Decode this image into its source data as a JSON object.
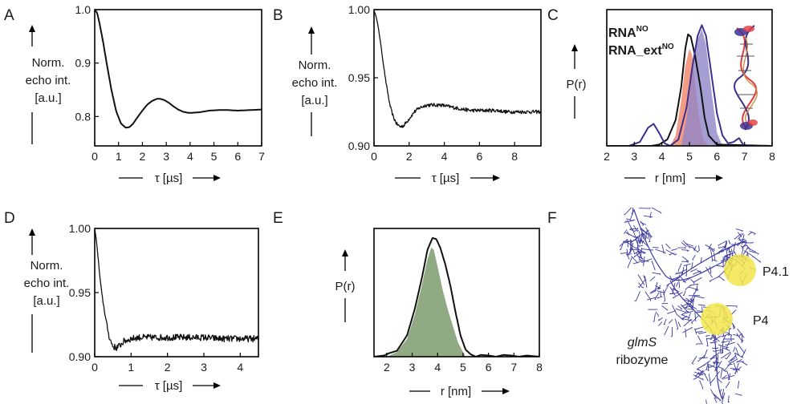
{
  "chart_data": [
    {
      "panel": "A",
      "type": "line",
      "xlabel": "τ [µs]",
      "ylabel": [
        "Norm.",
        "echo int.",
        "[a.u.]"
      ],
      "xlim": [
        0,
        7
      ],
      "ylim": [
        0.745,
        1.0
      ],
      "xticks": [
        0,
        1,
        2,
        3,
        4,
        5,
        6,
        7
      ],
      "yticks": [
        {
          "v": 0.8,
          "label": "0.8"
        },
        {
          "v": 0.9,
          "label": "0.9"
        },
        {
          "v": 1.0,
          "label": "1.0"
        }
      ],
      "series": [
        {
          "noise": 0,
          "x": [
            0,
            0.1,
            0.2,
            0.35,
            0.5,
            0.7,
            0.9,
            1.1,
            1.3,
            1.45,
            1.6,
            1.8,
            2.0,
            2.2,
            2.4,
            2.6,
            2.75,
            2.9,
            3.1,
            3.3,
            3.5,
            3.7,
            3.9,
            4.1,
            4.4,
            4.8,
            5.2,
            5.6,
            6.0,
            6.5,
            7.0
          ],
          "y": [
            1.0,
            0.994,
            0.975,
            0.94,
            0.9,
            0.85,
            0.81,
            0.787,
            0.779,
            0.78,
            0.786,
            0.799,
            0.811,
            0.822,
            0.829,
            0.833,
            0.833,
            0.831,
            0.826,
            0.819,
            0.813,
            0.809,
            0.807,
            0.807,
            0.808,
            0.811,
            0.812,
            0.812,
            0.811,
            0.812,
            0.813
          ]
        }
      ]
    },
    {
      "panel": "B",
      "type": "line",
      "xlabel": "τ [µs]",
      "ylabel": [
        "Norm.",
        "echo int.",
        "[a.u.]"
      ],
      "xlim": [
        0,
        9.5
      ],
      "ylim": [
        0.9,
        1.0
      ],
      "xticks": [
        0,
        2,
        4,
        6,
        8
      ],
      "yticks": [
        {
          "v": 0.9,
          "label": "0.90"
        },
        {
          "v": 0.95,
          "label": "0.95"
        },
        {
          "v": 1.0,
          "label": "1.00"
        }
      ],
      "series": [
        {
          "noise": 0.0013,
          "x": [
            0,
            0.1,
            0.2,
            0.35,
            0.5,
            0.7,
            0.9,
            1.1,
            1.3,
            1.5,
            1.7,
            2.0,
            2.3,
            2.6,
            3.0,
            3.4,
            3.8,
            4.2,
            4.6,
            5.0,
            5.5,
            6.0,
            6.5,
            7.0,
            7.5,
            8.0,
            8.5,
            9.0,
            9.5
          ],
          "y": [
            0.999,
            0.996,
            0.99,
            0.978,
            0.963,
            0.945,
            0.93,
            0.921,
            0.916,
            0.914,
            0.915,
            0.92,
            0.925,
            0.928,
            0.93,
            0.93,
            0.93,
            0.929,
            0.928,
            0.927,
            0.926,
            0.926,
            0.926,
            0.926,
            0.925,
            0.925,
            0.925,
            0.925,
            0.925
          ]
        }
      ]
    },
    {
      "panel": "C",
      "type": "area",
      "xlabel": "r [nm]",
      "ylabel": [
        "P(r)"
      ],
      "xlim": [
        2,
        8
      ],
      "ylim": [
        0,
        1.05
      ],
      "xticks": [
        2,
        3,
        4,
        5,
        6,
        7,
        8
      ],
      "yticks": [],
      "legend": [
        {
          "name": "RNA",
          "sup": "NO",
          "color": "#e0393e"
        },
        {
          "name": "RNA_ext",
          "sup": "NO",
          "color": "#3d2f8f"
        }
      ],
      "fills": [
        {
          "color": "#f08b70",
          "opacity": 0.85,
          "x": [
            4.3,
            4.5,
            4.7,
            4.85,
            5.0,
            5.1,
            5.2,
            5.35,
            5.5,
            5.7
          ],
          "y": [
            0,
            0.08,
            0.35,
            0.62,
            0.75,
            0.7,
            0.5,
            0.22,
            0.05,
            0
          ]
        },
        {
          "color": "#8f86c8",
          "opacity": 0.8,
          "x": [
            4.7,
            4.9,
            5.1,
            5.3,
            5.45,
            5.6,
            5.8,
            6.0,
            6.2
          ],
          "y": [
            0,
            0.22,
            0.55,
            0.82,
            0.9,
            0.78,
            0.42,
            0.1,
            0
          ]
        }
      ],
      "series": [
        {
          "color": "#111111",
          "x": [
            2,
            3.6,
            3.9,
            4.2,
            4.5,
            4.7,
            4.85,
            4.95,
            5.05,
            5.2,
            5.4,
            5.55,
            5.7,
            6.0,
            8
          ],
          "y": [
            0,
            0,
            0.01,
            0.05,
            0.2,
            0.45,
            0.75,
            0.86,
            0.84,
            0.7,
            0.45,
            0.22,
            0.08,
            0.01,
            0
          ]
        },
        {
          "color": "#3d2f8f",
          "x": [
            2,
            2.8,
            3.2,
            3.5,
            3.7,
            3.9,
            4.1,
            4.3,
            4.6,
            4.9,
            5.1,
            5.3,
            5.45,
            5.6,
            5.8,
            6.0,
            6.2,
            6.4,
            6.6,
            6.8,
            6.95,
            7.2,
            8
          ],
          "y": [
            0,
            0,
            0.03,
            0.14,
            0.17,
            0.1,
            0.02,
            0,
            0.05,
            0.3,
            0.6,
            0.85,
            0.93,
            0.85,
            0.55,
            0.25,
            0.08,
            0.02,
            0.03,
            0.06,
            0.01,
            0,
            0
          ]
        }
      ]
    },
    {
      "panel": "D",
      "type": "line",
      "xlabel": "τ [µs]",
      "ylabel": [
        "Norm.",
        "echo int.",
        "[a.u.]"
      ],
      "xlim": [
        0,
        4.5
      ],
      "ylim": [
        0.9,
        1.0
      ],
      "xticks": [
        0,
        1,
        2,
        3,
        4
      ],
      "yticks": [
        {
          "v": 0.9,
          "label": "0.90"
        },
        {
          "v": 0.95,
          "label": "0.95"
        },
        {
          "v": 1.0,
          "label": "1.00"
        }
      ],
      "series": [
        {
          "noise": 0.0025,
          "x": [
            0,
            0.05,
            0.1,
            0.15,
            0.2,
            0.3,
            0.4,
            0.5,
            0.6,
            0.7,
            0.8,
            1.0,
            1.2,
            1.5,
            2.0,
            2.5,
            3.0,
            3.5,
            4.0,
            4.5
          ],
          "y": [
            1.0,
            0.99,
            0.975,
            0.96,
            0.948,
            0.93,
            0.915,
            0.908,
            0.907,
            0.909,
            0.912,
            0.914,
            0.915,
            0.915,
            0.915,
            0.915,
            0.915,
            0.914,
            0.914,
            0.914
          ]
        }
      ]
    },
    {
      "panel": "E",
      "type": "area",
      "xlabel": "r [nm]",
      "ylabel": [
        "P(r)"
      ],
      "xlim": [
        1.5,
        8
      ],
      "ylim": [
        0,
        1.08
      ],
      "xticks": [
        2,
        3,
        4,
        5,
        6,
        7,
        8
      ],
      "yticks": [],
      "fills": [
        {
          "color": "#6b8e5a",
          "opacity": 0.75,
          "x": [
            1.5,
            2.0,
            2.4,
            2.8,
            3.1,
            3.4,
            3.6,
            3.75,
            3.85,
            4.0,
            4.2,
            4.4,
            4.6,
            4.8,
            5.0,
            5.1,
            8.0
          ],
          "y": [
            0,
            0,
            0.04,
            0.15,
            0.35,
            0.62,
            0.82,
            0.92,
            0.9,
            0.76,
            0.56,
            0.4,
            0.26,
            0.12,
            0.04,
            0,
            0
          ]
        }
      ],
      "series": [
        {
          "color": "#111111",
          "x": [
            1.5,
            1.9,
            2.1,
            2.4,
            2.8,
            3.1,
            3.4,
            3.6,
            3.8,
            3.95,
            4.1,
            4.3,
            4.5,
            4.7,
            4.9,
            5.1,
            5.3,
            5.5,
            5.7,
            6.0,
            6.3,
            6.6,
            6.9,
            7.2,
            7.5,
            8.0
          ],
          "y": [
            0,
            0.01,
            0.03,
            0.05,
            0.18,
            0.4,
            0.68,
            0.9,
            1.0,
            0.99,
            0.92,
            0.78,
            0.6,
            0.38,
            0.18,
            0.06,
            0.02,
            0,
            0.015,
            0.01,
            0,
            0.015,
            0.01,
            0,
            0.01,
            0
          ]
        }
      ]
    }
  ],
  "figure": {
    "panel_F": {
      "letter": "F",
      "labels": [
        "P4.1",
        "P4"
      ],
      "molecule_italic": "glmS",
      "molecule_rest": "ribozyme",
      "label_color": "#3d2f8f",
      "spot_color": "#f2e64a",
      "structure_color": "#3d3aa0"
    }
  }
}
